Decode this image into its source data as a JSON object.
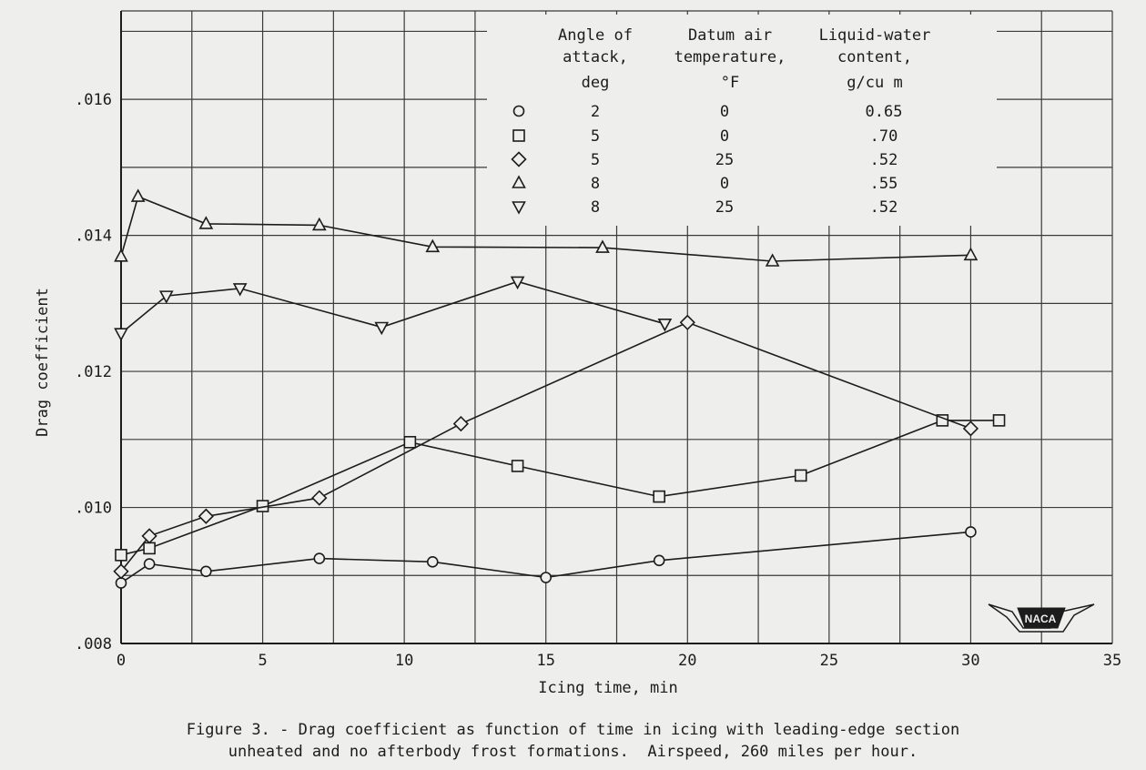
{
  "chart_data": {
    "type": "line",
    "xlabel": "Icing time, min",
    "ylabel": "Drag coefficient",
    "xlim": [
      0,
      35
    ],
    "ylim": [
      0.008,
      0.0173
    ],
    "xticks": [
      0,
      5,
      10,
      15,
      20,
      25,
      30,
      35
    ],
    "xtick_labels": [
      "0",
      "5",
      "10",
      "15",
      "20",
      "25",
      "30",
      "35"
    ],
    "yticks": [
      0.008,
      0.01,
      0.012,
      0.014,
      0.016
    ],
    "ytick_labels": [
      ".008",
      ".010",
      ".012",
      ".014",
      ".016"
    ],
    "grid": true,
    "legend": {
      "placement": "top-right",
      "headers": [
        [
          "Angle of",
          "attack,",
          "deg"
        ],
        [
          "Datum air",
          "temperature,",
          "°F"
        ],
        [
          "Liquid-water",
          "content,",
          "g/cu m"
        ]
      ],
      "rows": [
        {
          "marker": "circle",
          "angle": "2",
          "temp": "0",
          "lwc": "0.65"
        },
        {
          "marker": "square",
          "angle": "5",
          "temp": "0",
          "lwc": ".70"
        },
        {
          "marker": "diamond",
          "angle": "5",
          "temp": "25",
          "lwc": ".52"
        },
        {
          "marker": "triangle-up",
          "angle": "8",
          "temp": "0",
          "lwc": ".55"
        },
        {
          "marker": "triangle-down",
          "angle": "8",
          "temp": "25",
          "lwc": ".52"
        }
      ]
    },
    "series": [
      {
        "marker": "circle",
        "points": [
          [
            0,
            0.00889
          ],
          [
            1,
            0.00917
          ],
          [
            3,
            0.00906
          ],
          [
            7,
            0.00925
          ],
          [
            11,
            0.0092
          ],
          [
            15,
            0.00897
          ],
          [
            19,
            0.00922
          ],
          [
            30,
            0.00964
          ]
        ]
      },
      {
        "marker": "square",
        "points": [
          [
            0,
            0.0093
          ],
          [
            1,
            0.0094
          ],
          [
            5,
            0.01002
          ],
          [
            10.2,
            0.01096
          ],
          [
            14,
            0.01061
          ],
          [
            19,
            0.01016
          ],
          [
            24,
            0.01047
          ],
          [
            29,
            0.01128
          ],
          [
            31,
            0.01128
          ]
        ]
      },
      {
        "marker": "diamond",
        "points": [
          [
            0,
            0.00906
          ],
          [
            1,
            0.00958
          ],
          [
            3,
            0.00987
          ],
          [
            7,
            0.01014
          ],
          [
            12,
            0.01123
          ],
          [
            20,
            0.01272
          ],
          [
            30,
            0.01116
          ]
        ]
      },
      {
        "marker": "triangle-up",
        "points": [
          [
            0,
            0.01369
          ],
          [
            0.6,
            0.01457
          ],
          [
            3,
            0.01417
          ],
          [
            7,
            0.01415
          ],
          [
            11,
            0.01383
          ],
          [
            17,
            0.01382
          ],
          [
            23,
            0.01362
          ],
          [
            30,
            0.01371
          ]
        ]
      },
      {
        "marker": "triangle-down",
        "points": [
          [
            0,
            0.01256
          ],
          [
            1.6,
            0.01311
          ],
          [
            4.2,
            0.01322
          ],
          [
            9.2,
            0.01265
          ],
          [
            14,
            0.01332
          ],
          [
            19.2,
            0.0127
          ]
        ]
      }
    ],
    "annotations": [
      "NACA"
    ]
  },
  "caption": {
    "line1": "Figure 3. - Drag coefficient as function of time in icing with leading-edge section",
    "line2": "unheated and no afterbody frost formations.  Airspeed, 260 miles per hour."
  }
}
